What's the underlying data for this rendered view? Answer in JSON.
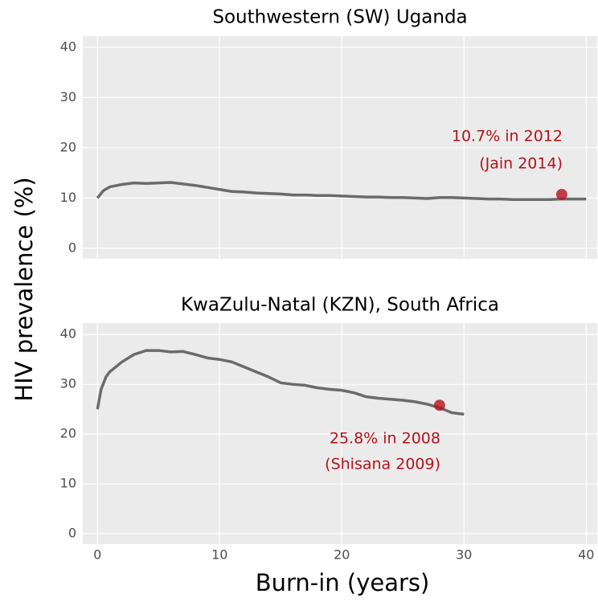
{
  "chart_data": [
    {
      "type": "line",
      "title": "Southwestern (SW) Uganda",
      "ylabel": "HIV prevalence (%)",
      "x": [
        0,
        0.5,
        1,
        2,
        3,
        4,
        5,
        6,
        7,
        8,
        9,
        10,
        11,
        12,
        13,
        14,
        15,
        16,
        17,
        18,
        19,
        20,
        21,
        22,
        23,
        24,
        25,
        26,
        27,
        28,
        29,
        30,
        31,
        32,
        33,
        34,
        35,
        36,
        37,
        38,
        39,
        40
      ],
      "series": [
        {
          "color": "#6b6b6b",
          "values": [
            10,
            11.5,
            12.2,
            12.7,
            13,
            12.9,
            13,
            13.1,
            12.8,
            12.5,
            12.1,
            11.7,
            11.3,
            11.2,
            11,
            10.9,
            10.8,
            10.6,
            10.6,
            10.5,
            10.5,
            10.4,
            10.3,
            10.2,
            10.2,
            10.1,
            10.1,
            10,
            9.9,
            10.1,
            10.1,
            10,
            9.9,
            9.8,
            9.8,
            9.7,
            9.7,
            9.7,
            9.7,
            9.8,
            9.8,
            9.8
          ]
        }
      ],
      "points": {
        "color": "#b5121b",
        "x": [
          38
        ],
        "y": [
          10.7
        ]
      },
      "annotation": [
        "10.7% in 2012",
        "(Jain 2014)"
      ],
      "xlim": [
        -1.2,
        40.9
      ],
      "xticks": [
        0,
        10,
        20,
        30,
        40
      ],
      "ylim": [
        -2.1,
        42.2
      ],
      "yticks": [
        0,
        10,
        20,
        30,
        40
      ],
      "grid": true
    },
    {
      "type": "line",
      "title": "KwaZulu-Natal (KZN), South Africa",
      "xlabel": "Burn-in (years)",
      "x": [
        0,
        0.3,
        0.7,
        1,
        1.5,
        2,
        3,
        4,
        5,
        6,
        7,
        8,
        9,
        10,
        11,
        12,
        13,
        14,
        15,
        16,
        17,
        18,
        19,
        20,
        21,
        22,
        23,
        24,
        25,
        26,
        27,
        28,
        29,
        30
      ],
      "series": [
        {
          "color": "#6b6b6b",
          "values": [
            25,
            29,
            31.5,
            32.5,
            33.5,
            34.5,
            36,
            36.8,
            36.8,
            36.5,
            36.6,
            36,
            35.3,
            35,
            34.5,
            33.5,
            32.5,
            31.5,
            30.3,
            30,
            29.8,
            29.3,
            29,
            28.8,
            28.3,
            27.5,
            27.2,
            27,
            26.8,
            26.5,
            26,
            25.3,
            24.3,
            24
          ]
        }
      ],
      "points": {
        "color": "#b5121b",
        "x": [
          28
        ],
        "y": [
          25.8
        ]
      },
      "annotation": [
        "25.8% in 2008",
        "(Shisana 2009)"
      ],
      "xlim": [
        -1.2,
        40.9
      ],
      "xticks": [
        0,
        10,
        20,
        30,
        40
      ],
      "ylim": [
        -2.1,
        42.3
      ],
      "yticks": [
        0,
        10,
        20,
        30,
        40
      ],
      "grid": true
    }
  ]
}
